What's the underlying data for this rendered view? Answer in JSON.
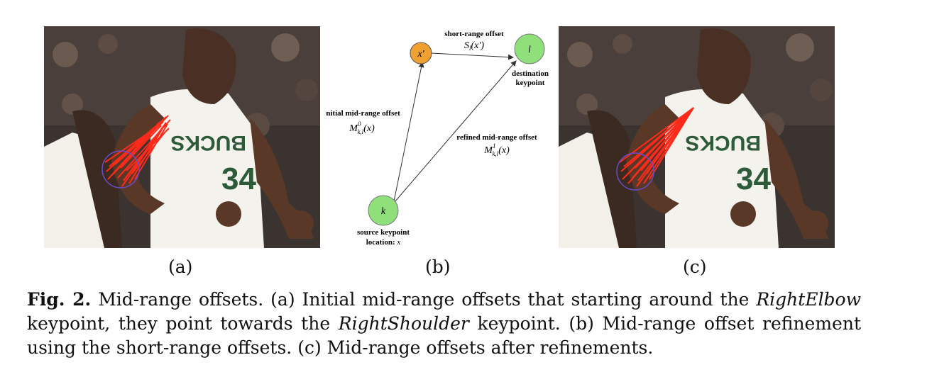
{
  "figure": {
    "subfigure_labels": [
      "(a)",
      "(b)",
      "(c)"
    ],
    "photo_a_description": "",
    "diagram": {
      "nodes": {
        "x_prime": "x′",
        "l": "l",
        "k": "k"
      },
      "texts": {
        "short_range_title": "short-range offset",
        "short_range_math": "S",
        "short_range_sub": "l",
        "short_range_arg": "(x′)",
        "destination_line1": "destination",
        "destination_line2": "keypoint",
        "initial_title": "initial mid-range offset",
        "initial_math": "M",
        "initial_sup": "0",
        "initial_sub": "k,l",
        "initial_arg": "(x)",
        "refined_title": "refined mid-range offset",
        "refined_math": "M",
        "refined_sup": "1",
        "refined_sub": "k,l",
        "refined_arg": "(x)",
        "source_line1": "source keypoint",
        "source_line2_prefix": "location: ",
        "source_line2_var": "x"
      },
      "colors": {
        "x_prime_node": "#f0a030",
        "endpoint_nodes": "#8fe07a",
        "arrows": "#333333"
      }
    },
    "overlay_colors": {
      "offset_vectors": "#ff2a1a",
      "keypoint_circle": "#6a4cc8"
    }
  },
  "caption": {
    "fig_label": "Fig. 2.",
    "part1": " Mid-range offsets. (a) Initial mid-range offsets that starting around the ",
    "italic1": "RightElbow",
    "part2": " keypoint, they point towards the ",
    "italic2": "RightShoulder",
    "part3": " keypoint. (b) Mid-range offset refinement using the short-range offsets. (c) Mid-range offsets after refinements."
  }
}
